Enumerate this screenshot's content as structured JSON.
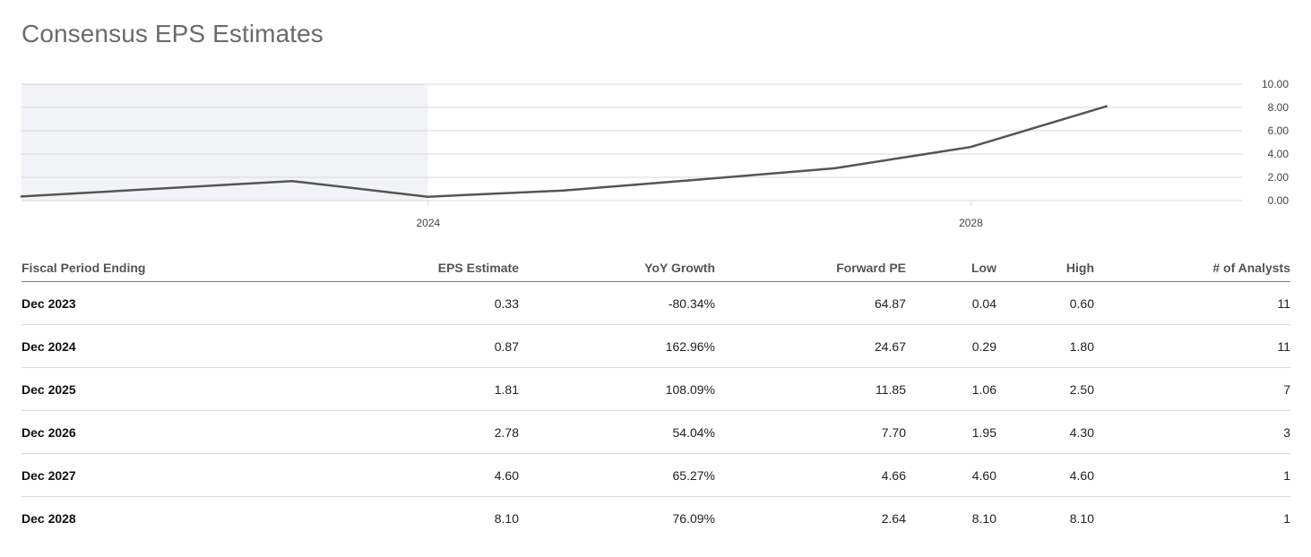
{
  "page": {
    "title": "Consensus EPS Estimates"
  },
  "colors": {
    "line": "#555555",
    "historical_band": "#f2f3f6",
    "grid": "#d9d9d9",
    "axis_text": "#444444"
  },
  "chart_data": {
    "type": "line",
    "title": "",
    "xlabel": "",
    "ylabel": "",
    "x_type": "date",
    "xlim": [
      "2021-01-01",
      "2029-12-31"
    ],
    "ylim": [
      0,
      10
    ],
    "x_ticks": [
      {
        "date": "2024-01-01",
        "label": "2024"
      },
      {
        "date": "2028-01-01",
        "label": "2028"
      }
    ],
    "y_ticks": [
      {
        "value": 0,
        "label": "0.00"
      },
      {
        "value": 2,
        "label": "2.00"
      },
      {
        "value": 4,
        "label": "4.00"
      },
      {
        "value": 6,
        "label": "6.00"
      },
      {
        "value": 8,
        "label": "8.00"
      },
      {
        "value": 10,
        "label": "10.00"
      }
    ],
    "y_axis_position": "right",
    "grid": true,
    "historical_band": {
      "start": "2021-01-01",
      "end": "2023-12-31"
    },
    "series": [
      {
        "points": [
          {
            "x": "2021-01-01",
            "y": 0.35
          },
          {
            "x": "2022-12-31",
            "y": 1.68
          },
          {
            "x": "2023-12-31",
            "y": 0.33
          },
          {
            "x": "2024-12-31",
            "y": 0.87
          },
          {
            "x": "2025-12-31",
            "y": 1.81
          },
          {
            "x": "2026-12-31",
            "y": 2.78
          },
          {
            "x": "2027-12-31",
            "y": 4.6
          },
          {
            "x": "2028-12-31",
            "y": 8.1
          }
        ]
      }
    ]
  },
  "table": {
    "headers": [
      "Fiscal Period Ending",
      "EPS Estimate",
      "YoY Growth",
      "Forward PE",
      "Low",
      "High",
      "# of Analysts"
    ],
    "rows": [
      [
        "Dec 2023",
        "0.33",
        "-80.34%",
        "64.87",
        "0.04",
        "0.60",
        "11"
      ],
      [
        "Dec 2024",
        "0.87",
        "162.96%",
        "24.67",
        "0.29",
        "1.80",
        "11"
      ],
      [
        "Dec 2025",
        "1.81",
        "108.09%",
        "11.85",
        "1.06",
        "2.50",
        "7"
      ],
      [
        "Dec 2026",
        "2.78",
        "54.04%",
        "7.70",
        "1.95",
        "4.30",
        "3"
      ],
      [
        "Dec 2027",
        "4.60",
        "65.27%",
        "4.66",
        "4.60",
        "4.60",
        "1"
      ],
      [
        "Dec 2028",
        "8.10",
        "76.09%",
        "2.64",
        "8.10",
        "8.10",
        "1"
      ]
    ]
  }
}
